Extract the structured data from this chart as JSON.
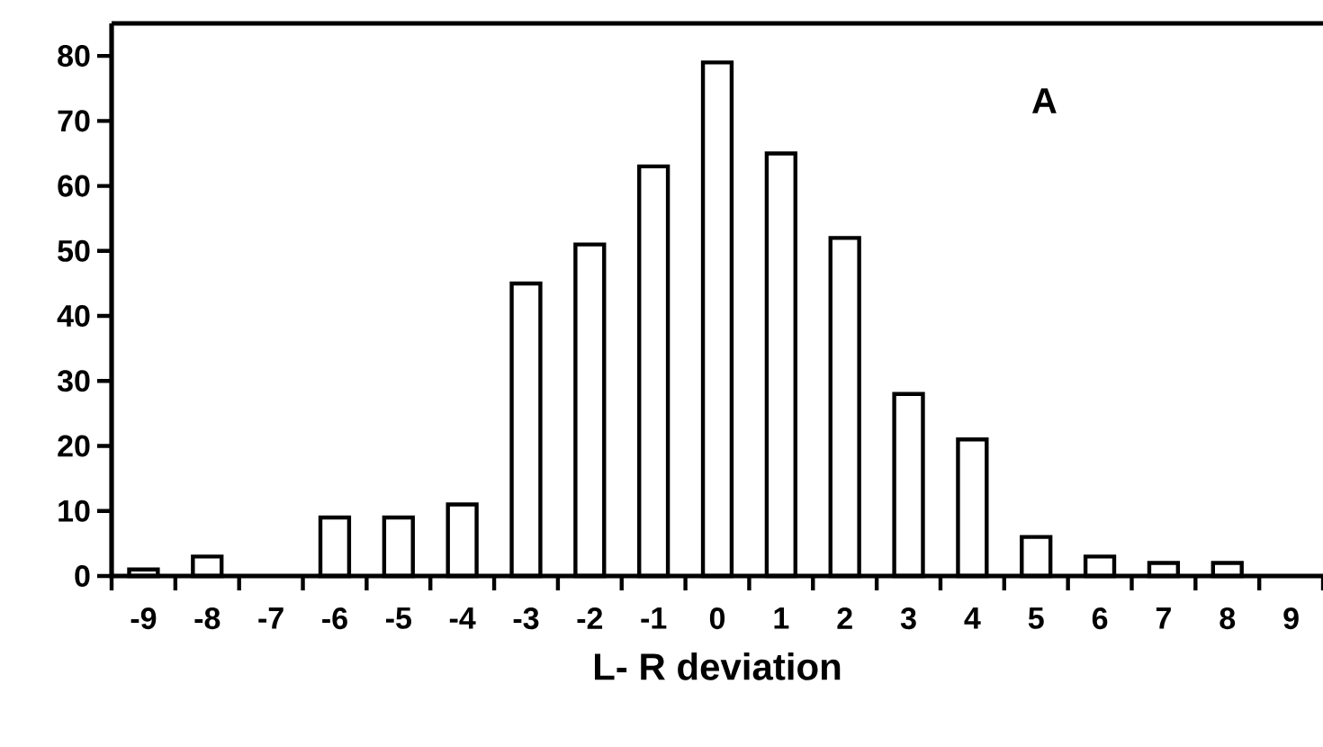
{
  "chart_data": {
    "type": "bar",
    "xlabel": "L- R deviation",
    "annotations": [
      "A"
    ],
    "categories": [
      "-9",
      "-8",
      "-7",
      "-6",
      "-5",
      "-4",
      "-3",
      "-2",
      "-1",
      "0",
      "1",
      "2",
      "3",
      "4",
      "5",
      "6",
      "7",
      "8",
      "9"
    ],
    "values": [
      1,
      3,
      0,
      9,
      9,
      11,
      45,
      51,
      63,
      79,
      65,
      52,
      28,
      21,
      6,
      3,
      2,
      2,
      0
    ],
    "color": "#ffffff",
    "ylim": [
      0,
      85
    ],
    "yticks": [
      0,
      10,
      20,
      30,
      40,
      50,
      60,
      70,
      80
    ]
  }
}
